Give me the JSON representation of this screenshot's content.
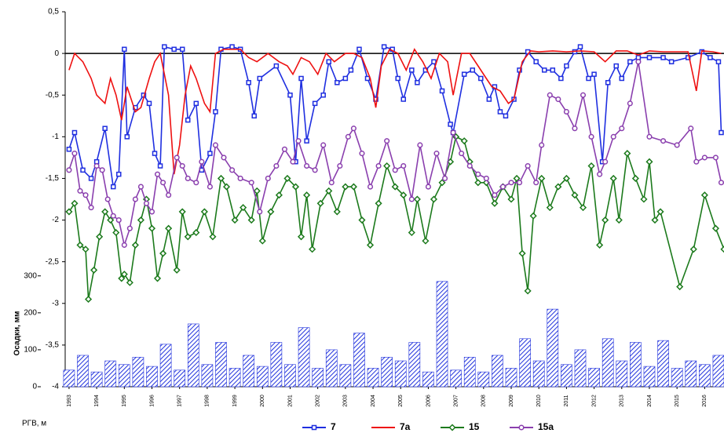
{
  "chart_data": {
    "type": "line",
    "y2_label": "Осадки, мм",
    "y_label": "РГВ, м",
    "xlim": [
      1992.86,
      2016.7
    ],
    "xticks": [
      1993,
      1994,
      1995,
      1996,
      1997,
      1998,
      1999,
      2000,
      2001,
      2002,
      2003,
      2004,
      2005,
      2006,
      2007,
      2008,
      2009,
      2010,
      2011,
      2012,
      2013,
      2014,
      2015,
      2016
    ],
    "ylim": [
      -4,
      0.5
    ],
    "yticks": [
      {
        "value": 0.5,
        "label": "0,5"
      },
      0,
      {
        "value": -0.5,
        "label": "-0,5"
      },
      -1,
      {
        "value": -1.5,
        "label": "-1,5"
      },
      -2,
      {
        "value": -2.5,
        "label": "-2,5"
      },
      -3,
      {
        "value": -3.5,
        "label": "-3,5"
      },
      -4
    ],
    "y2lim": [
      0,
      1015
    ],
    "y2ticks": [
      0,
      100,
      200,
      300
    ],
    "series": [
      {
        "name": "7",
        "color": "#1f2fe0",
        "marker": "square",
        "x": [
          1993.0,
          1993.2,
          1993.5,
          1993.8,
          1994.0,
          1994.3,
          1994.6,
          1994.8,
          1995.0,
          1995.1,
          1995.4,
          1995.7,
          1995.9,
          1996.1,
          1996.3,
          1996.45,
          1996.8,
          1997.1,
          1997.3,
          1997.6,
          1997.8,
          1998.1,
          1998.3,
          1998.5,
          1998.9,
          1999.2,
          1999.5,
          1999.7,
          1999.9,
          2000.5,
          2001.0,
          2001.2,
          2001.4,
          2001.6,
          2001.9,
          2002.2,
          2002.4,
          2002.7,
          2003.0,
          2003.2,
          2003.5,
          2003.8,
          2004.1,
          2004.4,
          2004.7,
          2004.9,
          2005.1,
          2005.4,
          2005.6,
          2005.9,
          2006.2,
          2006.5,
          2006.8,
          2006.9,
          2007.3,
          2007.6,
          2007.9,
          2008.2,
          2008.4,
          2008.6,
          2008.8,
          2009.1,
          2009.3,
          2009.6,
          2009.9,
          2010.2,
          2010.5,
          2010.8,
          2011.0,
          2011.3,
          2011.5,
          2011.8,
          2012.0,
          2012.3,
          2012.5,
          2012.8,
          2013.0,
          2013.3,
          2013.6,
          2014.0,
          2014.5,
          2014.8,
          2015.4,
          2015.9,
          2016.2,
          2016.5,
          2016.6
        ],
        "values": [
          -1.15,
          -0.95,
          -1.4,
          -1.5,
          -1.3,
          -0.9,
          -1.6,
          -1.45,
          0.05,
          -1.0,
          -0.65,
          -0.5,
          -0.6,
          -1.2,
          -1.35,
          0.08,
          0.05,
          0.05,
          -0.8,
          -0.6,
          -1.4,
          -1.2,
          -0.7,
          0.05,
          0.08,
          0.05,
          -0.35,
          -0.75,
          -0.3,
          -0.15,
          -0.5,
          -1.3,
          -0.3,
          -1.05,
          -0.6,
          -0.5,
          -0.1,
          -0.35,
          -0.3,
          -0.2,
          0.05,
          -0.3,
          -0.55,
          0.08,
          0.05,
          -0.3,
          -0.55,
          -0.2,
          -0.35,
          -0.2,
          -0.1,
          -0.45,
          -0.85,
          -0.95,
          -0.25,
          -0.2,
          -0.3,
          -0.55,
          -0.4,
          -0.7,
          -0.75,
          -0.55,
          -0.2,
          0.02,
          -0.1,
          -0.2,
          -0.2,
          -0.3,
          -0.15,
          0.02,
          0.08,
          -0.3,
          -0.25,
          -1.3,
          -0.35,
          -0.15,
          -0.3,
          -0.1,
          -0.05,
          -0.05,
          -0.05,
          -0.1,
          -0.05,
          0.02,
          -0.05,
          -0.1,
          -0.95
        ]
      },
      {
        "name": "7а",
        "color": "#ee1111",
        "marker": "none",
        "x": [
          1993.0,
          1993.2,
          1993.5,
          1993.8,
          1994.0,
          1994.3,
          1994.5,
          1994.7,
          1994.9,
          1995.1,
          1995.4,
          1995.6,
          1995.9,
          1996.1,
          1996.3,
          1996.6,
          1996.8,
          1997.0,
          1997.2,
          1997.4,
          1997.6,
          1997.9,
          1998.1,
          1998.3,
          1998.6,
          1998.9,
          1999.2,
          1999.5,
          1999.8,
          2000.2,
          2000.6,
          2000.9,
          2001.1,
          2001.4,
          2001.7,
          2002.0,
          2002.3,
          2002.6,
          2003.0,
          2003.3,
          2003.6,
          2003.9,
          2004.1,
          2004.3,
          2004.6,
          2004.9,
          2005.2,
          2005.5,
          2005.8,
          2006.1,
          2006.4,
          2006.7,
          2006.9,
          2007.2,
          2007.5,
          2007.8,
          2008.1,
          2008.3,
          2008.6,
          2008.9,
          2009.1,
          2009.4,
          2009.7,
          2010.0,
          2010.5,
          2011.0,
          2011.5,
          2012.0,
          2012.4,
          2012.8,
          2013.2,
          2013.6,
          2014.0,
          2014.5,
          2015.0,
          2015.4,
          2015.7,
          2015.9,
          2016.3,
          2016.6
        ],
        "values": [
          -0.2,
          0,
          -0.1,
          -0.3,
          -0.5,
          -0.6,
          -0.3,
          -0.5,
          -0.8,
          -0.4,
          -0.7,
          -0.65,
          -0.3,
          -0.1,
          0,
          -0.5,
          -1.45,
          -1.1,
          -0.5,
          -0.15,
          -0.3,
          -0.6,
          -0.7,
          0,
          0.05,
          0.05,
          0.05,
          -0.05,
          -0.1,
          0,
          -0.1,
          -0.15,
          -0.25,
          -0.05,
          -0.1,
          -0.25,
          0,
          -0.1,
          0,
          0,
          -0.05,
          -0.3,
          -0.65,
          -0.15,
          0.05,
          0,
          -0.2,
          0.05,
          -0.1,
          -0.3,
          0,
          -0.1,
          -0.5,
          0,
          0,
          -0.15,
          -0.3,
          -0.4,
          -0.45,
          -0.6,
          -0.55,
          -0.1,
          0.03,
          0.02,
          0.03,
          0.02,
          0.03,
          0.02,
          -0.1,
          0.03,
          0.03,
          -0.02,
          0.03,
          0.02,
          0.02,
          0.02,
          -0.45,
          0.03,
          0.02,
          0
        ]
      },
      {
        "name": "15",
        "color": "#1c7a1c",
        "marker": "diamond",
        "x": [
          1993.0,
          1993.2,
          1993.4,
          1993.6,
          1993.7,
          1993.9,
          1994.1,
          1994.3,
          1994.5,
          1994.7,
          1994.9,
          1995.0,
          1995.2,
          1995.4,
          1995.6,
          1995.8,
          1996.0,
          1996.2,
          1996.4,
          1996.6,
          1996.9,
          1997.1,
          1997.3,
          1997.6,
          1997.9,
          1998.2,
          1998.5,
          1998.7,
          1999.0,
          1999.3,
          1999.6,
          1999.8,
          2000.0,
          2000.3,
          2000.6,
          2000.9,
          2001.2,
          2001.4,
          2001.6,
          2001.8,
          2002.1,
          2002.4,
          2002.7,
          2003.0,
          2003.3,
          2003.6,
          2003.9,
          2004.2,
          2004.5,
          2004.8,
          2005.1,
          2005.4,
          2005.6,
          2005.9,
          2006.2,
          2006.5,
          2006.8,
          2007.0,
          2007.3,
          2007.5,
          2007.8,
          2008.1,
          2008.4,
          2008.7,
          2009.0,
          2009.2,
          2009.4,
          2009.6,
          2009.8,
          2010.1,
          2010.4,
          2010.7,
          2011.0,
          2011.3,
          2011.6,
          2011.9,
          2012.2,
          2012.4,
          2012.7,
          2012.9,
          2013.2,
          2013.5,
          2013.8,
          2014.0,
          2014.2,
          2014.4,
          2015.1,
          2015.6,
          2016.0,
          2016.4,
          2016.7
        ],
        "values": [
          -1.9,
          -1.8,
          -2.3,
          -2.35,
          -2.95,
          -2.6,
          -2.2,
          -1.9,
          -2.0,
          -2.15,
          -2.7,
          -2.65,
          -2.75,
          -2.3,
          -2.0,
          -1.75,
          -2.1,
          -2.7,
          -2.4,
          -2.1,
          -2.6,
          -1.9,
          -2.2,
          -2.15,
          -1.9,
          -2.2,
          -1.5,
          -1.6,
          -2.0,
          -1.85,
          -2.0,
          -1.65,
          -2.25,
          -1.9,
          -1.7,
          -1.5,
          -1.6,
          -2.2,
          -1.7,
          -2.35,
          -1.8,
          -1.65,
          -1.9,
          -1.6,
          -1.6,
          -2.0,
          -2.3,
          -1.8,
          -1.35,
          -1.6,
          -1.7,
          -2.15,
          -1.75,
          -2.25,
          -1.75,
          -1.55,
          -1.3,
          -1.0,
          -1.05,
          -1.3,
          -1.55,
          -1.55,
          -1.8,
          -1.6,
          -1.75,
          -1.5,
          -2.4,
          -2.85,
          -1.95,
          -1.5,
          -1.85,
          -1.6,
          -1.5,
          -1.7,
          -1.85,
          -1.35,
          -2.3,
          -2.0,
          -1.5,
          -2.0,
          -1.2,
          -1.5,
          -1.75,
          -1.3,
          -2.0,
          -1.9,
          -2.8,
          -2.35,
          -1.7,
          -2.1,
          -2.35
        ]
      },
      {
        "name": "15а",
        "color": "#8a3fae",
        "marker": "circle",
        "x": [
          1993.0,
          1993.2,
          1993.4,
          1993.6,
          1993.8,
          1994.0,
          1994.2,
          1994.4,
          1994.6,
          1994.8,
          1995.0,
          1995.2,
          1995.4,
          1995.6,
          1995.8,
          1996.0,
          1996.2,
          1996.4,
          1996.6,
          1996.9,
          1997.1,
          1997.3,
          1997.6,
          1997.8,
          1998.1,
          1998.3,
          1998.6,
          1998.9,
          1999.2,
          1999.6,
          1999.9,
          2000.2,
          2000.5,
          2000.8,
          2001.1,
          2001.3,
          2001.6,
          2001.9,
          2002.2,
          2002.5,
          2002.8,
          2003.1,
          2003.3,
          2003.6,
          2003.9,
          2004.2,
          2004.5,
          2004.8,
          2005.1,
          2005.4,
          2005.7,
          2006.0,
          2006.3,
          2006.6,
          2006.9,
          2007.2,
          2007.5,
          2007.8,
          2008.1,
          2008.4,
          2008.7,
          2009.0,
          2009.3,
          2009.6,
          2009.9,
          2010.1,
          2010.4,
          2010.7,
          2011.0,
          2011.3,
          2011.6,
          2011.9,
          2012.2,
          2012.4,
          2012.7,
          2013.0,
          2013.3,
          2013.6,
          2014.0,
          2014.5,
          2015.0,
          2015.5,
          2015.7,
          2016.0,
          2016.4,
          2016.6
        ],
        "values": [
          -1.4,
          -1.2,
          -1.65,
          -1.7,
          -1.85,
          -1.35,
          -1.4,
          -1.75,
          -1.95,
          -2.0,
          -2.3,
          -2.1,
          -1.75,
          -1.6,
          -1.8,
          -1.9,
          -1.45,
          -1.55,
          -1.7,
          -1.25,
          -1.35,
          -1.5,
          -1.55,
          -1.3,
          -1.6,
          -1.1,
          -1.25,
          -1.4,
          -1.5,
          -1.55,
          -1.9,
          -1.5,
          -1.35,
          -1.15,
          -1.3,
          -1.05,
          -1.35,
          -1.4,
          -1.1,
          -1.55,
          -1.35,
          -1.0,
          -0.9,
          -1.2,
          -1.6,
          -1.35,
          -1.05,
          -1.4,
          -1.35,
          -1.75,
          -1.1,
          -1.6,
          -1.2,
          -1.5,
          -0.95,
          -1.2,
          -1.35,
          -1.45,
          -1.5,
          -1.7,
          -1.6,
          -1.55,
          -1.55,
          -1.35,
          -1.55,
          -1.1,
          -0.5,
          -0.55,
          -0.7,
          -0.9,
          -0.5,
          -1.0,
          -1.45,
          -1.3,
          -1.0,
          -0.9,
          -0.6,
          -0.1,
          -1.0,
          -1.05,
          -1.1,
          -0.9,
          -1.3,
          -1.25,
          -1.25,
          -1.55
        ]
      },
      {
        "color": "#2233dd",
        "axis": "y2",
        "kind": "bar",
        "x": [
          1993.0,
          1993.5,
          1994.0,
          1994.5,
          1995.0,
          1995.5,
          1996.0,
          1996.5,
          1997.0,
          1997.5,
          1998.0,
          1998.5,
          1999.0,
          1999.5,
          2000.0,
          2000.5,
          2001.0,
          2001.5,
          2002.0,
          2002.5,
          2003.0,
          2003.5,
          2004.0,
          2004.5,
          2005.0,
          2005.5,
          2006.0,
          2006.5,
          2007.0,
          2007.5,
          2008.0,
          2008.5,
          2009.0,
          2009.5,
          2010.0,
          2010.5,
          2011.0,
          2011.5,
          2012.0,
          2012.5,
          2013.0,
          2013.5,
          2014.0,
          2014.5,
          2015.0,
          2015.5,
          2016.0,
          2016.5
        ],
        "values": [
          45,
          85,
          40,
          70,
          60,
          80,
          55,
          115,
          45,
          170,
          60,
          120,
          50,
          85,
          55,
          120,
          60,
          160,
          50,
          100,
          60,
          145,
          50,
          80,
          70,
          120,
          40,
          285,
          45,
          80,
          40,
          85,
          50,
          130,
          70,
          210,
          60,
          100,
          50,
          130,
          70,
          120,
          55,
          125,
          50,
          70,
          60,
          85
        ]
      }
    ]
  }
}
